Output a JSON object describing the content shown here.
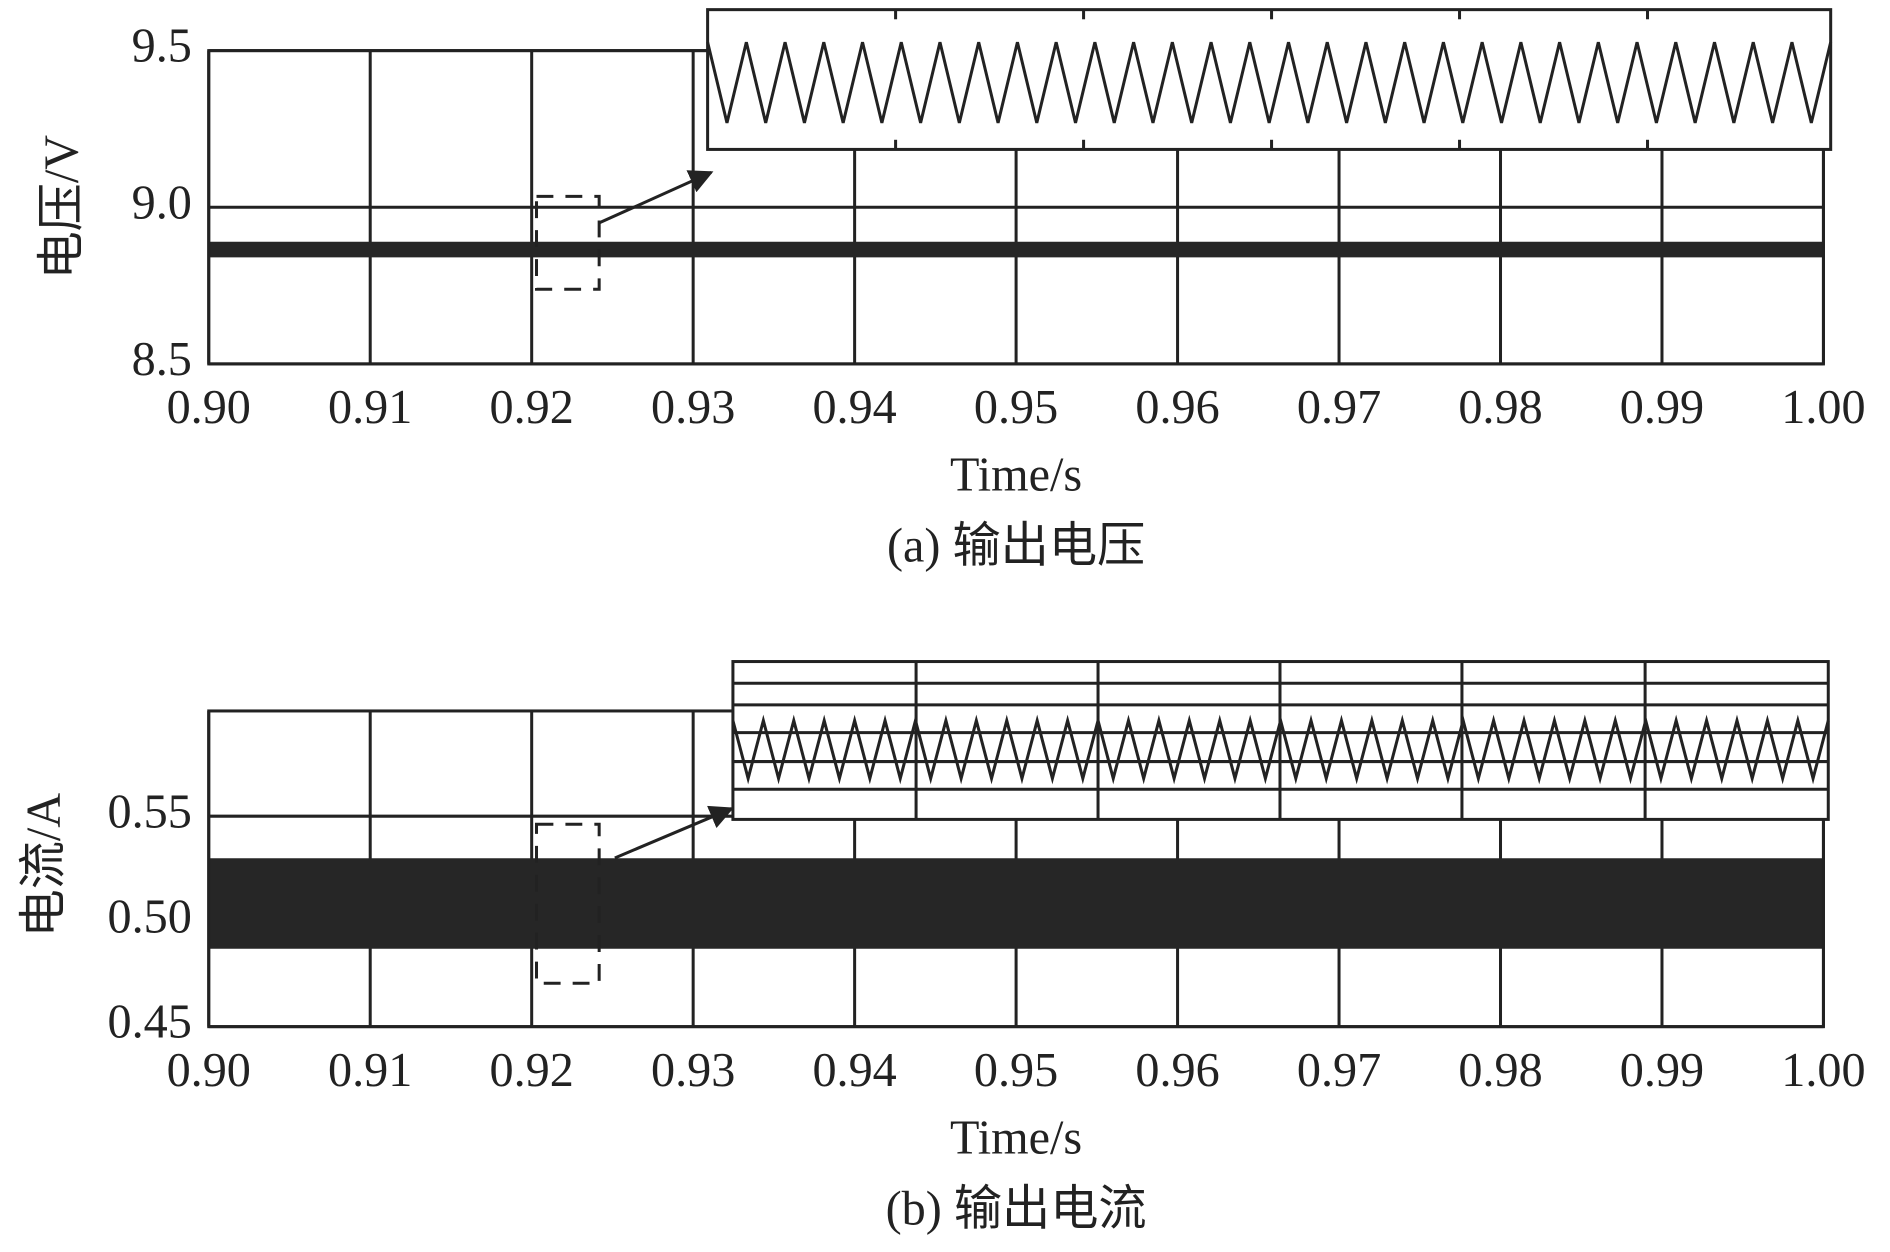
{
  "chart_data": [
    {
      "type": "band",
      "xlabel": "Time/s",
      "ylabel": "电压/V",
      "caption": "(a) 输出电压",
      "x": [
        0.9,
        1.0
      ],
      "upper": [
        8.89,
        8.89
      ],
      "lower": [
        8.84,
        8.84
      ],
      "color": "#262626",
      "xlim": [
        0.9,
        1.0
      ],
      "ylim": [
        8.5,
        9.5
      ],
      "xticks": [
        {
          "value": 0.9,
          "label": "0.90"
        },
        0.91,
        0.92,
        0.93,
        0.94,
        0.95,
        0.96,
        0.97,
        0.98,
        0.99,
        {
          "value": 1.0,
          "label": "1.00"
        }
      ],
      "yticks": [
        8.5,
        {
          "value": 9.0,
          "label": "9.0"
        },
        9.5
      ],
      "grid": true
    },
    {
      "type": "band",
      "xlabel": "Time/s",
      "ylabel": "电流/A",
      "caption": "(b) 输出电流",
      "x": [
        0.9,
        1.0
      ],
      "upper": [
        0.53,
        0.53
      ],
      "lower": [
        0.487,
        0.487
      ],
      "color": "#262626",
      "xlim": [
        0.9,
        1.0
      ],
      "ylim": [
        0.45,
        0.6
      ],
      "xticks": [
        {
          "value": 0.9,
          "label": "0.90"
        },
        0.91,
        0.92,
        0.93,
        0.94,
        0.95,
        0.96,
        0.97,
        0.98,
        0.99,
        {
          "value": 1.0,
          "label": "1.00"
        }
      ],
      "yticks": [
        0.45,
        {
          "value": 0.5,
          "label": "0.50"
        },
        0.55
      ],
      "grid": true
    }
  ]
}
